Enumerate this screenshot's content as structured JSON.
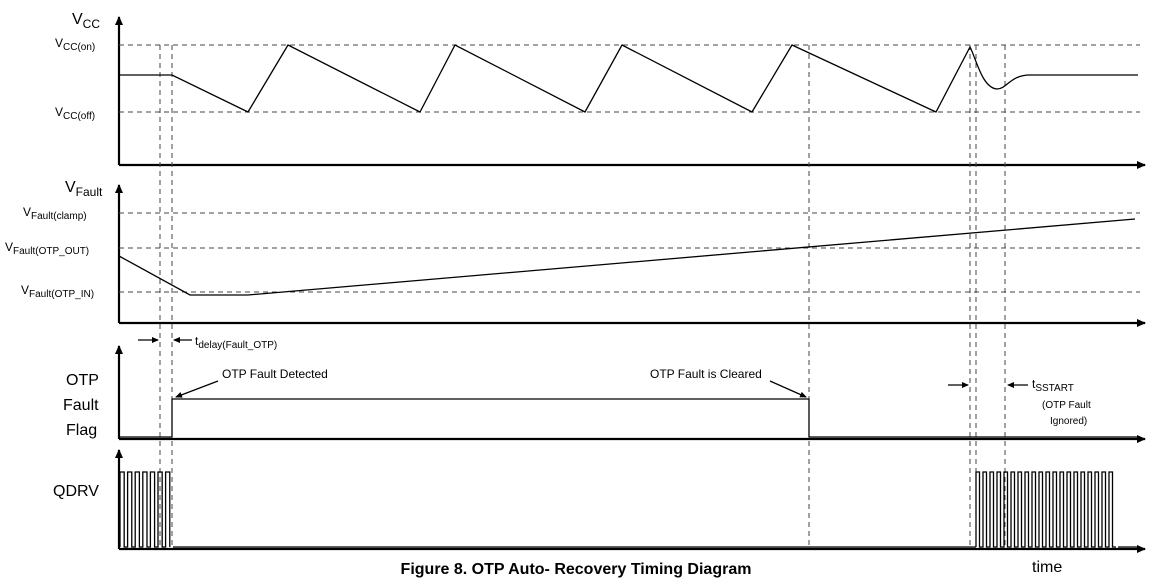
{
  "vcc": {
    "axis_label": "V",
    "axis_sub": "CC",
    "level_on": {
      "main": "V",
      "sub": "CC(on)"
    },
    "level_off": {
      "main": "V",
      "sub": "CC(off)"
    }
  },
  "fault": {
    "axis_label": "V",
    "axis_sub": "Fault",
    "level_clamp": {
      "main": "V",
      "sub": "Fault(clamp)"
    },
    "level_otp_out": {
      "main": "V",
      "sub": "Fault(OTP_OUT)"
    },
    "level_otp_in": {
      "main": "V",
      "sub": "Fault(OTP_IN)"
    }
  },
  "delay": {
    "main": "t",
    "sub": "delay(Fault_OTP)"
  },
  "flag": {
    "label_line1": "OTP",
    "label_line2": "Fault",
    "label_line3": "Flag",
    "detected": "OTP Fault Detected",
    "cleared": "OTP Fault is Cleared"
  },
  "sstart": {
    "main": "t",
    "sub": "SSTART",
    "note_line1": "(OTP Fault",
    "note_line2": "Ignored)"
  },
  "qdrv": {
    "label": "QDRV"
  },
  "time_label": "time",
  "caption": "Figure 8. OTP Auto- Recovery Timing Diagram"
}
